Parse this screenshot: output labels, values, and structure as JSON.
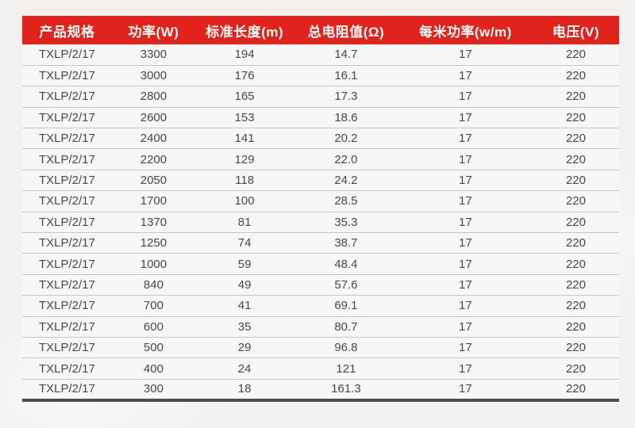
{
  "colors": {
    "header_bg": "#e2231c",
    "header_text": "#ffffff",
    "body_text": "#474747",
    "row_line": "#c6c6c6",
    "bottom_bar": "#4d4d4d",
    "page_bg": "#f2f1ef",
    "row_bg": "#f8f7f5"
  },
  "table": {
    "columns": [
      {
        "label": "产品规格"
      },
      {
        "label": "功率(W)"
      },
      {
        "label": "标准长度(m)"
      },
      {
        "label": "总电阻值(Ω)"
      },
      {
        "label": "每米功率(w/m)"
      },
      {
        "label": "电压(V)"
      }
    ],
    "rows": [
      [
        "TXLP/2/17",
        "3300",
        "194",
        "14.7",
        "17",
        "220"
      ],
      [
        "TXLP/2/17",
        "3000",
        "176",
        "16.1",
        "17",
        "220"
      ],
      [
        "TXLP/2/17",
        "2800",
        "165",
        "17.3",
        "17",
        "220"
      ],
      [
        "TXLP/2/17",
        "2600",
        "153",
        "18.6",
        "17",
        "220"
      ],
      [
        "TXLP/2/17",
        "2400",
        "141",
        "20.2",
        "17",
        "220"
      ],
      [
        "TXLP/2/17",
        "2200",
        "129",
        "22.0",
        "17",
        "220"
      ],
      [
        "TXLP/2/17",
        "2050",
        "118",
        "24.2",
        "17",
        "220"
      ],
      [
        "TXLP/2/17",
        "1700",
        "100",
        "28.5",
        "17",
        "220"
      ],
      [
        "TXLP/2/17",
        "1370",
        "81",
        "35.3",
        "17",
        "220"
      ],
      [
        "TXLP/2/17",
        "1250",
        "74",
        "38.7",
        "17",
        "220"
      ],
      [
        "TXLP/2/17",
        "1000",
        "59",
        "48.4",
        "17",
        "220"
      ],
      [
        "TXLP/2/17",
        "840",
        "49",
        "57.6",
        "17",
        "220"
      ],
      [
        "TXLP/2/17",
        "700",
        "41",
        "69.1",
        "17",
        "220"
      ],
      [
        "TXLP/2/17",
        "600",
        "35",
        "80.7",
        "17",
        "220"
      ],
      [
        "TXLP/2/17",
        "500",
        "29",
        "96.8",
        "17",
        "220"
      ],
      [
        "TXLP/2/17",
        "400",
        "24",
        "121",
        "17",
        "220"
      ],
      [
        "TXLP/2/17",
        "300",
        "18",
        "161.3",
        "17",
        "220"
      ]
    ]
  },
  "chart_data": {
    "type": "table",
    "title": "",
    "columns": [
      "产品规格",
      "功率(W)",
      "标准长度(m)",
      "总电阻值(Ω)",
      "每米功率(w/m)",
      "电压(V)"
    ],
    "rows": [
      [
        "TXLP/2/17",
        3300,
        194,
        14.7,
        17,
        220
      ],
      [
        "TXLP/2/17",
        3000,
        176,
        16.1,
        17,
        220
      ],
      [
        "TXLP/2/17",
        2800,
        165,
        17.3,
        17,
        220
      ],
      [
        "TXLP/2/17",
        2600,
        153,
        18.6,
        17,
        220
      ],
      [
        "TXLP/2/17",
        2400,
        141,
        20.2,
        17,
        220
      ],
      [
        "TXLP/2/17",
        2200,
        129,
        22.0,
        17,
        220
      ],
      [
        "TXLP/2/17",
        2050,
        118,
        24.2,
        17,
        220
      ],
      [
        "TXLP/2/17",
        1700,
        100,
        28.5,
        17,
        220
      ],
      [
        "TXLP/2/17",
        1370,
        81,
        35.3,
        17,
        220
      ],
      [
        "TXLP/2/17",
        1250,
        74,
        38.7,
        17,
        220
      ],
      [
        "TXLP/2/17",
        1000,
        59,
        48.4,
        17,
        220
      ],
      [
        "TXLP/2/17",
        840,
        49,
        57.6,
        17,
        220
      ],
      [
        "TXLP/2/17",
        700,
        41,
        69.1,
        17,
        220
      ],
      [
        "TXLP/2/17",
        600,
        35,
        80.7,
        17,
        220
      ],
      [
        "TXLP/2/17",
        500,
        29,
        96.8,
        17,
        220
      ],
      [
        "TXLP/2/17",
        400,
        24,
        121,
        17,
        220
      ],
      [
        "TXLP/2/17",
        300,
        18,
        161.3,
        17,
        220
      ]
    ]
  }
}
